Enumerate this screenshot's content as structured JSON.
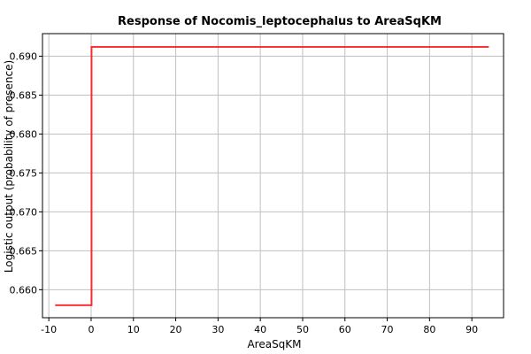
{
  "chart_data": {
    "type": "line",
    "title": "Response of Nocomis_leptocephalus to AreaSqKM",
    "xlabel": "AreaSqKM",
    "ylabel": "Logistic output (probability of presence)",
    "xlim": [
      -11.5,
      97.5
    ],
    "ylim": [
      0.6564,
      0.6929
    ],
    "x_ticks": [
      -10,
      0,
      10,
      20,
      30,
      40,
      50,
      60,
      70,
      80,
      90
    ],
    "x_tick_labels": [
      "-10",
      "0",
      "10",
      "20",
      "30",
      "40",
      "50",
      "60",
      "70",
      "80",
      "90"
    ],
    "y_ticks": [
      0.66,
      0.665,
      0.67,
      0.675,
      0.68,
      0.685,
      0.69
    ],
    "y_tick_labels": [
      "0.660",
      "0.665",
      "0.670",
      "0.675",
      "0.680",
      "0.685",
      "0.690"
    ],
    "grid": true,
    "series": [
      {
        "color": "#ff0000",
        "x": [
          -8.5,
          0.1,
          0.1,
          94.0
        ],
        "y": [
          0.658,
          0.658,
          0.6912,
          0.6912
        ]
      }
    ]
  }
}
